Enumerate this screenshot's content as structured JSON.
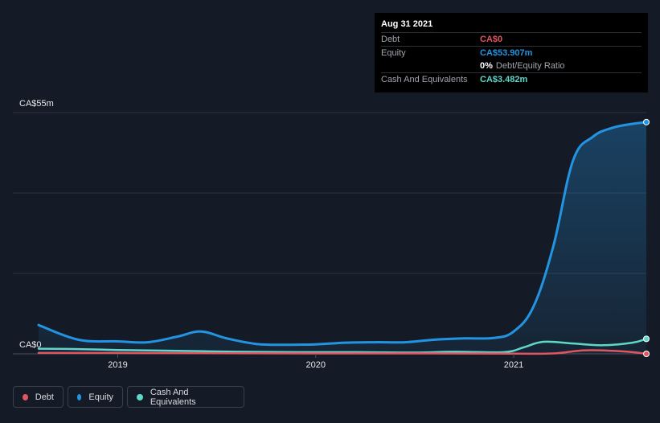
{
  "tooltip": {
    "date": "Aug 31 2021",
    "debt_label": "Debt",
    "debt_value": "CA$0",
    "equity_label": "Equity",
    "equity_value": "CA$53.907m",
    "ratio_value": "0%",
    "ratio_label": "Debt/Equity Ratio",
    "cash_label": "Cash And Equivalents",
    "cash_value": "CA$3.482m"
  },
  "legend": {
    "debt": "Debt",
    "equity": "Equity",
    "cash": "Cash And Equivalents"
  },
  "colors": {
    "debt": "#e05561",
    "equity": "#2394e2",
    "cash": "#5fd8c9",
    "background": "#151b26"
  },
  "chart_data": {
    "type": "area",
    "ylim": [
      0,
      55
    ],
    "y_tick_labels": [
      "CA$0",
      "CA$55m"
    ],
    "x_tick_labels": [
      "2019",
      "2020",
      "2021"
    ],
    "x_ticks": [
      2019.0,
      2020.0,
      2021.0
    ],
    "x_range": [
      2018.6,
      2021.67
    ],
    "series": [
      {
        "name": "Equity",
        "x": [
          2018.6,
          2018.8,
          2019.0,
          2019.15,
          2019.3,
          2019.42,
          2019.55,
          2019.7,
          2019.85,
          2020.0,
          2020.15,
          2020.3,
          2020.45,
          2020.6,
          2020.75,
          2020.9,
          2021.0,
          2021.1,
          2021.2,
          2021.3,
          2021.4,
          2021.5,
          2021.6,
          2021.67
        ],
        "values": [
          6.7,
          3.3,
          2.9,
          2.7,
          4.0,
          5.2,
          3.6,
          2.3,
          2.1,
          2.2,
          2.6,
          2.7,
          2.7,
          3.3,
          3.6,
          3.7,
          5.2,
          11.0,
          25.0,
          45.0,
          50.5,
          52.6,
          53.5,
          53.907
        ]
      },
      {
        "name": "Cash And Equivalents",
        "x": [
          2018.6,
          2018.8,
          2019.0,
          2019.3,
          2019.6,
          2019.9,
          2020.2,
          2020.5,
          2020.7,
          2020.95,
          2021.05,
          2021.15,
          2021.3,
          2021.45,
          2021.6,
          2021.67
        ],
        "values": [
          1.2,
          1.1,
          0.9,
          0.7,
          0.5,
          0.4,
          0.4,
          0.3,
          0.5,
          0.4,
          1.5,
          2.8,
          2.4,
          2.0,
          2.6,
          3.482
        ]
      },
      {
        "name": "Debt",
        "x": [
          2018.6,
          2019.0,
          2019.5,
          2020.0,
          2020.5,
          2021.0,
          2021.2,
          2021.35,
          2021.5,
          2021.6,
          2021.67
        ],
        "values": [
          0.2,
          0.2,
          0.15,
          0.1,
          0.1,
          0.05,
          0.1,
          0.8,
          0.7,
          0.4,
          0.0
        ]
      }
    ]
  }
}
